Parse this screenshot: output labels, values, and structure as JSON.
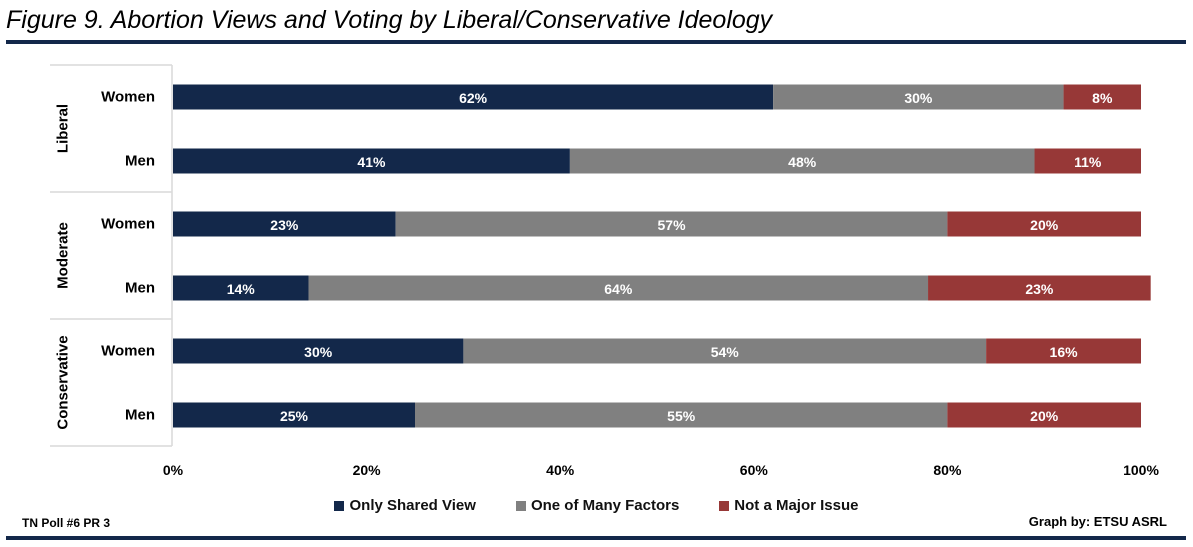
{
  "title": "Figure 9. Abortion Views and Voting by Liberal/Conservative Ideology",
  "footer": {
    "source": "TN Poll #6 PR 3",
    "credit": "Graph by: ETSU ASRL"
  },
  "chart_data": {
    "type": "bar",
    "orientation": "horizontal-stacked-100",
    "groups": [
      {
        "name": "Liberal",
        "categories": [
          "Women",
          "Men"
        ]
      },
      {
        "name": "Moderate",
        "categories": [
          "Women",
          "Men"
        ]
      },
      {
        "name": "Conservative",
        "categories": [
          "Women",
          "Men"
        ]
      }
    ],
    "series": [
      {
        "name": "Only Shared View",
        "color": "#13284a",
        "values": [
          62,
          41,
          23,
          14,
          30,
          25
        ]
      },
      {
        "name": "One of Many Factors",
        "color": "#808080",
        "values": [
          30,
          48,
          57,
          64,
          54,
          55
        ]
      },
      {
        "name": "Not a Major Issue",
        "color": "#973837",
        "values": [
          8,
          11,
          20,
          23,
          16,
          20
        ]
      }
    ],
    "xticks": [
      "0%",
      "20%",
      "40%",
      "60%",
      "80%",
      "100%"
    ],
    "xlim": [
      0,
      100
    ],
    "legend": "bottom",
    "grid": false
  }
}
